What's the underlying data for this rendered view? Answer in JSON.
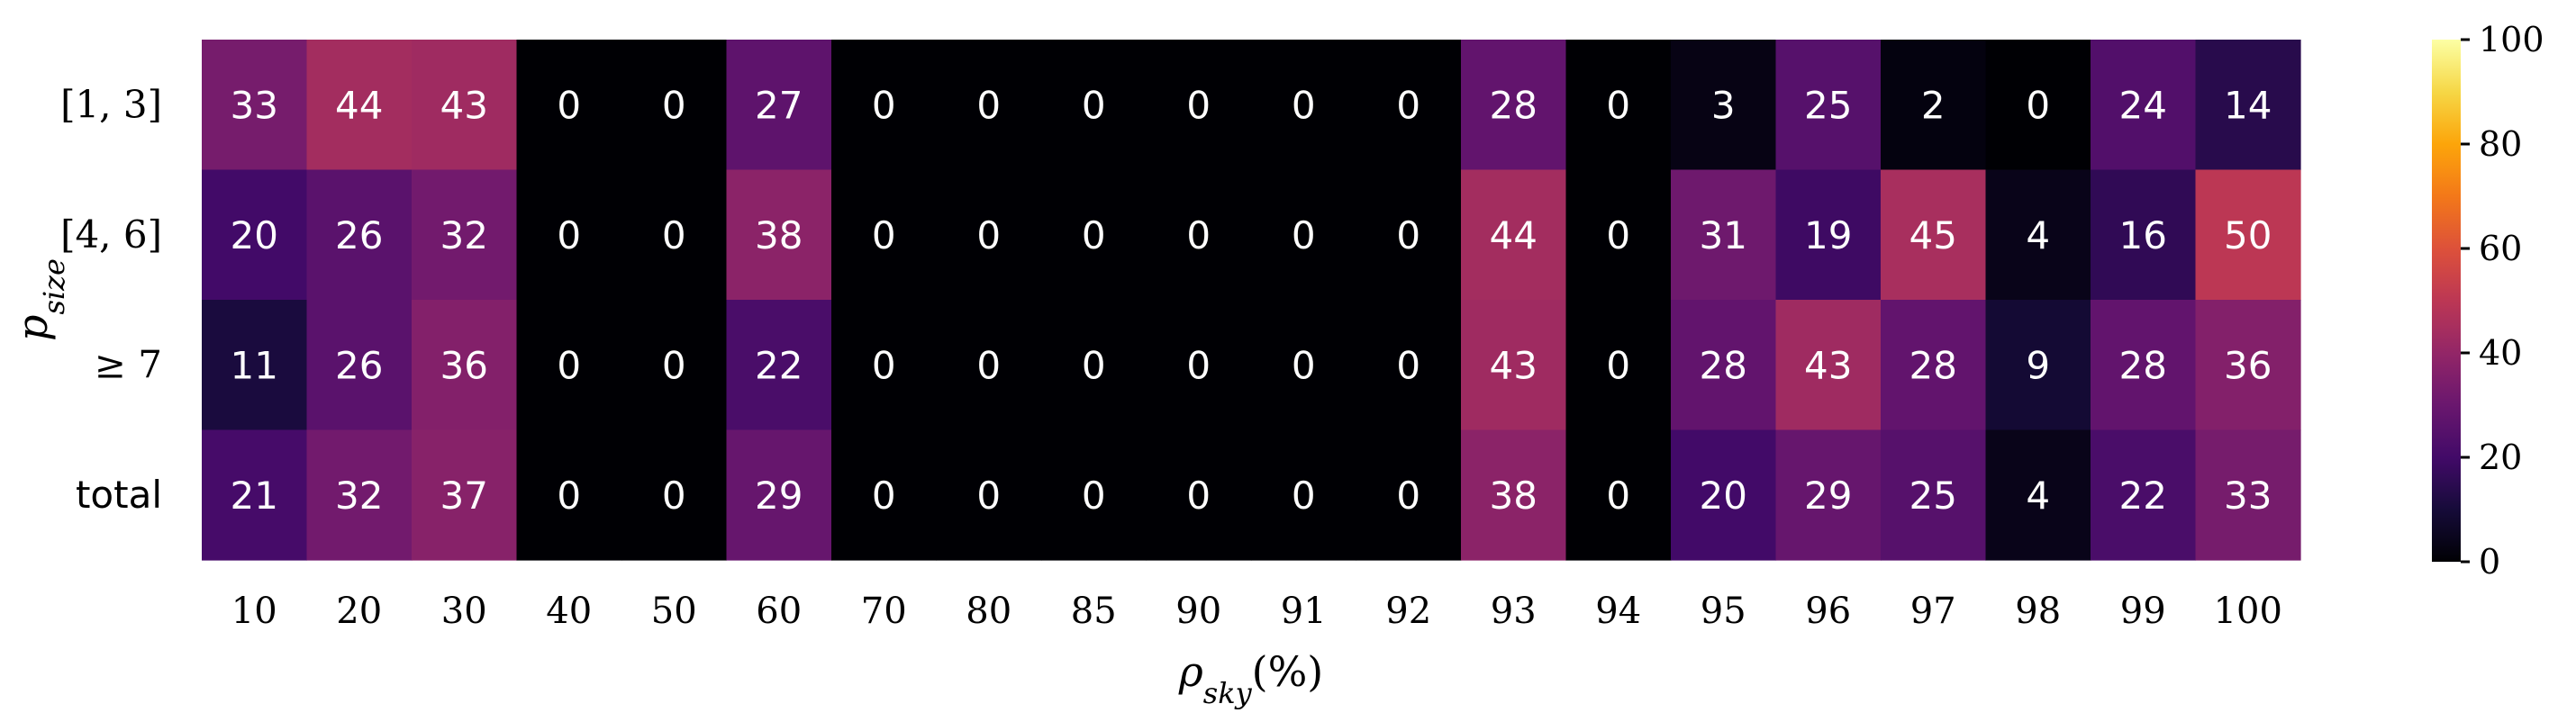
{
  "chart_data": {
    "type": "heatmap",
    "xlabel": "ρ_sky(%)",
    "ylabel": "p_size",
    "x_categories": [
      "10",
      "20",
      "30",
      "40",
      "50",
      "60",
      "70",
      "80",
      "85",
      "90",
      "91",
      "92",
      "93",
      "94",
      "95",
      "96",
      "97",
      "98",
      "99",
      "100"
    ],
    "y_categories": [
      "[1, 3]",
      "[4, 6]",
      "≥ 7",
      "total"
    ],
    "values": [
      [
        33,
        44,
        43,
        0,
        0,
        27,
        0,
        0,
        0,
        0,
        0,
        0,
        28,
        0,
        3,
        25,
        2,
        0,
        24,
        14
      ],
      [
        20,
        26,
        32,
        0,
        0,
        38,
        0,
        0,
        0,
        0,
        0,
        0,
        44,
        0,
        31,
        19,
        45,
        4,
        16,
        50
      ],
      [
        11,
        26,
        36,
        0,
        0,
        22,
        0,
        0,
        0,
        0,
        0,
        0,
        43,
        0,
        28,
        43,
        28,
        9,
        28,
        36
      ],
      [
        21,
        32,
        37,
        0,
        0,
        29,
        0,
        0,
        0,
        0,
        0,
        0,
        38,
        0,
        20,
        29,
        25,
        4,
        22,
        33
      ]
    ],
    "colorbar": {
      "colormap": "inferno",
      "range": [
        0,
        100
      ],
      "ticks": [
        "0",
        "20",
        "40",
        "60",
        "80",
        "100"
      ]
    }
  }
}
